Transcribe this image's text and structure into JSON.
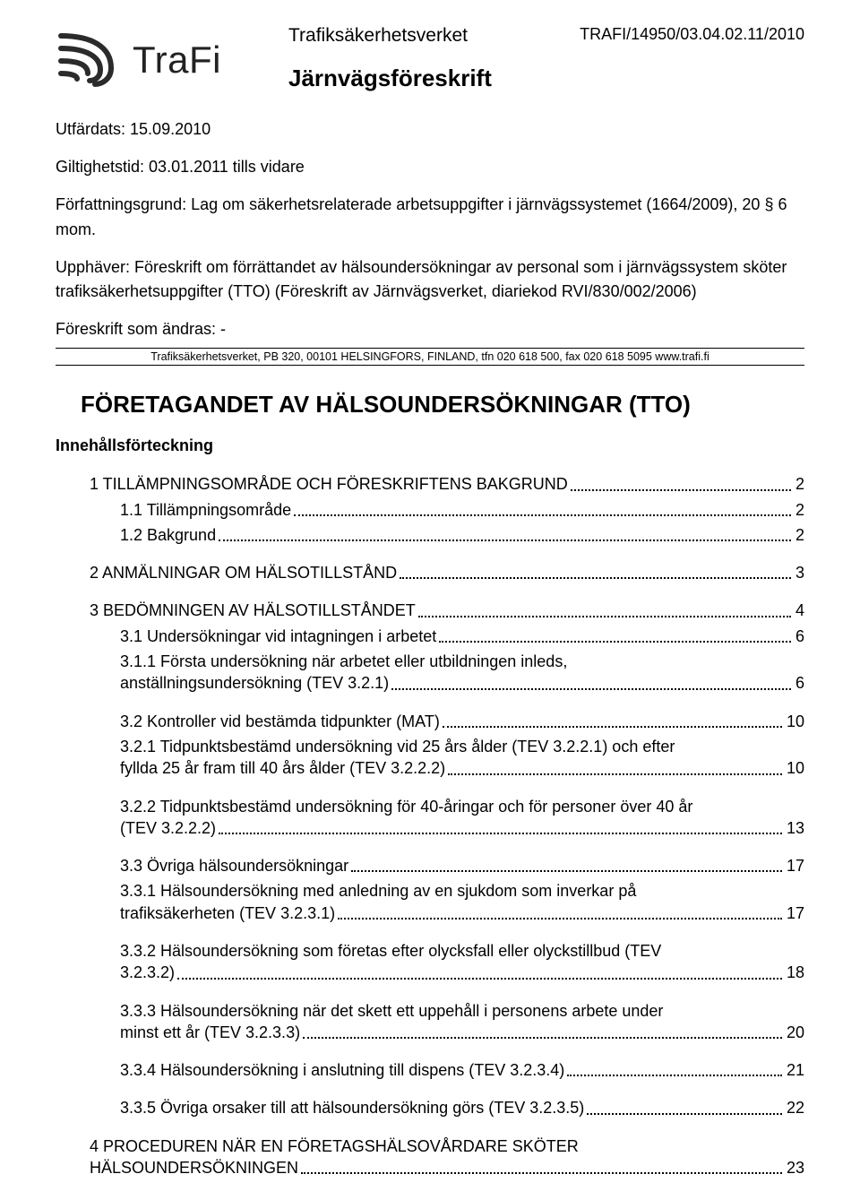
{
  "header": {
    "agency": "Trafiksäkerhetsverket",
    "doc_type": "Järnvägsföreskrift",
    "doc_id": "TRAFI/14950/03.04.02.11/2010",
    "logo_text": "TraFi"
  },
  "meta": {
    "issued_label": "Utfärdats: 15.09.2010",
    "validity_label": "Giltighetstid: 03.01.2011 tills vidare",
    "basis": "Författningsgrund: Lag om säkerhetsrelaterade arbetsuppgifter i järnvägssystemet (1664/2009), 20 § 6 mom.",
    "repeals": "Upphäver: Föreskrift om förrättandet av hälsoundersökningar av personal som i järnvägssystem sköter trafiksäkerhetsuppgifter (TTO) (Föreskrift av Järnvägsverket, diariekod RVI/830/002/2006)",
    "changes": "Föreskrift som ändras: -",
    "footer": "Trafiksäkerhetsverket, PB 320, 00101 HELSINGFORS, FINLAND, tfn 020 618 500, fax 020 618 5095 www.trafi.fi"
  },
  "title": "FÖRETAGANDET AV HÄLSOUNDERSÖKNINGAR (TTO)",
  "toc_heading": "Innehållsförteckning",
  "toc": [
    {
      "level": 1,
      "label": "1 TILLÄMPNINGSOMRÅDE OCH FÖRESKRIFTENS BAKGRUND",
      "page": "2",
      "gap": false
    },
    {
      "level": 2,
      "label": "1.1 Tillämpningsområde",
      "page": "2",
      "gap": false
    },
    {
      "level": 2,
      "label": "1.2 Bakgrund",
      "page": "2",
      "gap": true
    },
    {
      "level": 1,
      "label": "2 ANMÄLNINGAR OM HÄLSOTILLSTÅND",
      "page": "3",
      "gap": true
    },
    {
      "level": 1,
      "label": "3 BEDÖMNINGEN AV HÄLSOTILLSTÅNDET",
      "page": "4",
      "gap": false
    },
    {
      "level": 2,
      "label": "3.1 Undersökningar vid intagningen i arbetet",
      "page": "6",
      "gap": false
    },
    {
      "level": 2,
      "label_pre": "3.1.1 Första undersökning när arbetet eller utbildningen inleds,",
      "label": "anställningsundersökning (TEV 3.2.1)",
      "page": "6",
      "gap": true,
      "wrap": true
    },
    {
      "level": 2,
      "label": "3.2 Kontroller vid bestämda tidpunkter (MAT)",
      "page": "10",
      "gap": false
    },
    {
      "level": 2,
      "label_pre": "3.2.1 Tidpunktsbestämd undersökning vid 25 års ålder (TEV 3.2.2.1) och efter",
      "label": "fyllda 25 år fram till 40 års ålder (TEV 3.2.2.2)",
      "page": "10",
      "gap": true,
      "wrap": true
    },
    {
      "level": 2,
      "label_pre": "3.2.2 Tidpunktsbestämd undersökning för 40-åringar och för personer över 40 år",
      "label": "(TEV 3.2.2.2)",
      "page": "13",
      "gap": true,
      "wrap": true
    },
    {
      "level": 2,
      "label": "3.3 Övriga hälsoundersökningar",
      "page": "17",
      "gap": false
    },
    {
      "level": 2,
      "label_pre": "3.3.1 Hälsoundersökning med anledning av en sjukdom som inverkar på",
      "label": "trafiksäkerheten (TEV 3.2.3.1)",
      "page": "17",
      "gap": true,
      "wrap": true
    },
    {
      "level": 2,
      "label_pre": "3.3.2 Hälsoundersökning som företas efter olycksfall eller olyckstillbud (TEV",
      "label": "3.2.3.2)",
      "page": "18",
      "gap": true,
      "wrap": true
    },
    {
      "level": 2,
      "label_pre": "3.3.3 Hälsoundersökning när det skett ett uppehåll i personens arbete under",
      "label": "minst ett år (TEV 3.2.3.3)",
      "page": "20",
      "gap": true,
      "wrap": true
    },
    {
      "level": 2,
      "label": "3.3.4 Hälsoundersökning i anslutning till dispens (TEV 3.2.3.4)",
      "page": "21",
      "gap": true
    },
    {
      "level": 2,
      "label": "3.3.5 Övriga orsaker till att hälsoundersökning görs (TEV 3.2.3.5)",
      "page": "22",
      "gap": true
    },
    {
      "level": 1,
      "label_pre": "4 PROCEDUREN NÄR EN FÖRETAGSHÄLSOVÅRDARE SKÖTER",
      "label": "HÄLSOUNDERSÖKNINGEN",
      "page": "23",
      "gap": false,
      "wrap": true
    }
  ],
  "colors": {
    "text": "#000000",
    "background": "#ffffff",
    "logo": "#2b2b2b"
  }
}
